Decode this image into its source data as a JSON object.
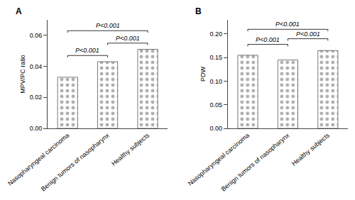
{
  "chart_data": [
    {
      "type": "bar",
      "title": "A",
      "categories": [
        "Nasopharyngeal carcinoma",
        "Benign tumors of nasopharynx",
        "Healthy subjects"
      ],
      "values": [
        0.033,
        0.043,
        0.051
      ],
      "color": "#b0b0b0",
      "y_label": "MPV/PC ratio",
      "ylim": [
        0,
        0.07
      ],
      "yticks": [
        {
          "value": 0.0,
          "label": "0.00"
        },
        {
          "value": 0.02,
          "label": "0.02"
        },
        {
          "value": 0.04,
          "label": "0.04"
        },
        {
          "value": 0.06,
          "label": "0.06"
        }
      ],
      "grid": false,
      "annotations": [
        {
          "text": "P<0.001",
          "x": [
            "Nasopharyngeal carcinoma",
            "Benign tumors of nasopharynx"
          ],
          "y": 0.047
        },
        {
          "text": "P<0.001",
          "x": [
            "Benign tumors of nasopharynx",
            "Healthy subjects"
          ],
          "y": 0.055
        },
        {
          "text": "P<0.001",
          "x": [
            "Nasopharyngeal carcinoma",
            "Healthy subjects"
          ],
          "y": 0.063
        }
      ]
    },
    {
      "type": "bar",
      "title": "B",
      "categories": [
        "Nasopharyngeal carcinoma",
        "Benign tumors of nasopharynx",
        "Healthy subjects"
      ],
      "values": [
        0.155,
        0.145,
        0.165
      ],
      "color": "#b0b0b0",
      "y_label": "PDW",
      "ylim": [
        0,
        0.23
      ],
      "yticks": [
        {
          "value": 0.0,
          "label": "0.00"
        },
        {
          "value": 0.05,
          "label": "0.05"
        },
        {
          "value": 0.1,
          "label": "0.10"
        },
        {
          "value": 0.15,
          "label": "0.15"
        },
        {
          "value": 0.2,
          "label": "0.20"
        }
      ],
      "grid": false,
      "annotations": [
        {
          "text": "P<0.001",
          "x": [
            "Nasopharyngeal carcinoma",
            "Benign tumors of nasopharynx"
          ],
          "y": 0.178
        },
        {
          "text": "P<0.001",
          "x": [
            "Benign tumors of nasopharynx",
            "Healthy subjects"
          ],
          "y": 0.19
        },
        {
          "text": "P<0.001",
          "x": [
            "Nasopharyngeal carcinoma",
            "Healthy subjects"
          ],
          "y": 0.21
        }
      ]
    }
  ]
}
